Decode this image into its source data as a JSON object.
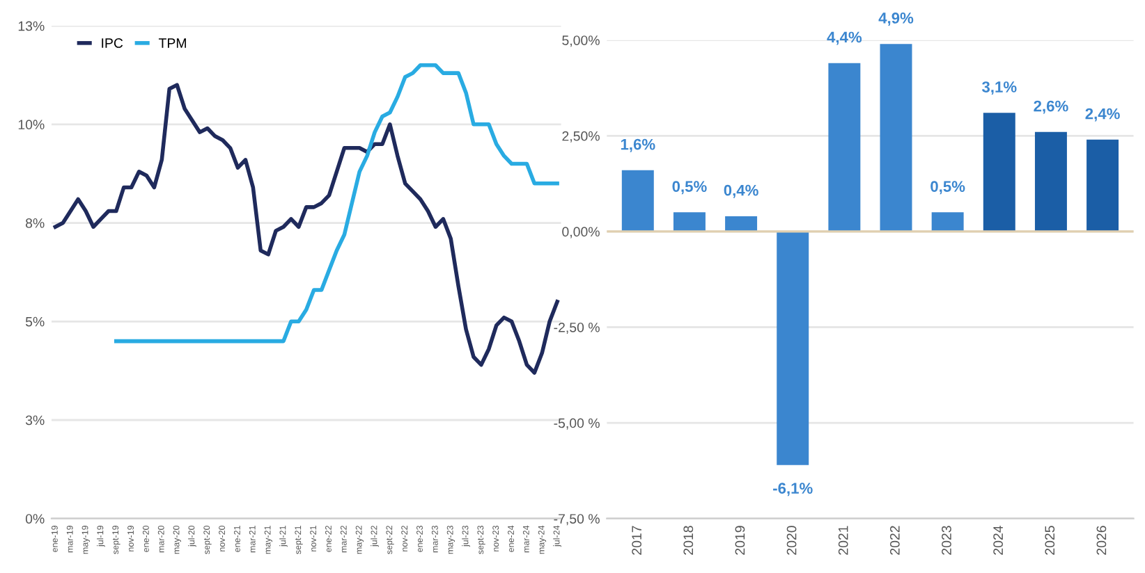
{
  "chart_data": [
    {
      "type": "line",
      "categories": [
        "ene-19",
        null,
        "mar-19",
        null,
        "may-19",
        null,
        "jul-19",
        null,
        "sept-19",
        null,
        "nov-19",
        null,
        "ene-20",
        null,
        "mar-20",
        null,
        "may-20",
        null,
        "jul-20",
        null,
        "sept-20",
        null,
        "nov-20",
        null,
        "ene-21",
        null,
        "mar-21",
        null,
        "may-21",
        null,
        "jul-21",
        null,
        "sept-21",
        null,
        "nov-21",
        null,
        "ene-22",
        null,
        "mar-22",
        null,
        "may-22",
        null,
        "jul-22",
        null,
        "sept-22",
        null,
        "nov-22",
        null,
        "ene-23",
        null,
        "mar-23",
        null,
        "may-23",
        null,
        "jul-23",
        null,
        "sept-23",
        null,
        "nov-23",
        null,
        "ene-24",
        null,
        "mar-24",
        null,
        "may-24",
        null,
        "jul-24"
      ],
      "series": [
        {
          "name": "IPC",
          "color": "#1f2a5c",
          "values": [
            7.4,
            7.5,
            7.8,
            8.1,
            7.8,
            7.4,
            7.6,
            7.8,
            7.8,
            8.4,
            8.4,
            8.8,
            8.7,
            8.4,
            9.1,
            10.9,
            11.0,
            10.4,
            10.1,
            9.8,
            9.9,
            9.7,
            9.6,
            9.4,
            8.9,
            9.1,
            8.4,
            6.8,
            6.7,
            7.3,
            7.4,
            7.6,
            7.4,
            7.9,
            7.9,
            8.0,
            8.2,
            8.8,
            9.4,
            9.4,
            9.4,
            9.3,
            9.5,
            9.5,
            10.0,
            9.2,
            8.5,
            8.3,
            8.1,
            7.8,
            7.4,
            7.6,
            7.1,
            5.9,
            4.8,
            4.1,
            3.9,
            4.3,
            4.9,
            5.1,
            5.0,
            4.5,
            3.9,
            3.7,
            4.2,
            5.0,
            5.5
          ]
        },
        {
          "name": "TPM",
          "color": "#29abe2",
          "values": [
            null,
            null,
            null,
            null,
            null,
            null,
            null,
            null,
            4.5,
            4.5,
            4.5,
            4.5,
            4.5,
            4.5,
            4.5,
            4.5,
            4.5,
            4.5,
            4.5,
            4.5,
            4.5,
            4.5,
            4.5,
            4.5,
            4.5,
            4.5,
            4.5,
            4.5,
            4.5,
            4.5,
            4.5,
            5.0,
            5.0,
            5.3,
            5.8,
            5.8,
            6.3,
            6.8,
            7.2,
            8.0,
            8.8,
            9.2,
            9.8,
            10.2,
            10.3,
            10.7,
            11.2,
            11.3,
            11.5,
            11.5,
            11.5,
            11.3,
            11.3,
            11.3,
            10.8,
            10.0,
            10.0,
            10.0,
            9.5,
            9.2,
            9.0,
            9.0,
            9.0,
            8.5,
            8.5,
            8.5,
            8.5
          ]
        }
      ],
      "ylim": [
        0,
        12.5
      ],
      "yticks": [
        {
          "value": 0,
          "label": "0%"
        },
        {
          "value": 2.5,
          "label": "3%"
        },
        {
          "value": 5,
          "label": "5%"
        },
        {
          "value": 7.5,
          "label": "8%"
        },
        {
          "value": 10,
          "label": "10%"
        },
        {
          "value": 12.5,
          "label": "13%"
        }
      ],
      "grid": "y",
      "legend": "top left",
      "marker": "none",
      "line_style": "solid"
    },
    {
      "type": "bar",
      "categories": [
        "2017",
        "2018",
        "2019",
        "2020",
        "2021",
        "2022",
        "2023",
        "2024",
        "2025",
        "2026"
      ],
      "values": [
        1.6,
        0.5,
        0.4,
        -6.1,
        4.4,
        4.9,
        0.5,
        3.1,
        2.6,
        2.4
      ],
      "colors": [
        "#3b86cf",
        "#3b86cf",
        "#3b86cf",
        "#3b86cf",
        "#3b86cf",
        "#3b86cf",
        "#3b86cf",
        "#1b5ea6",
        "#1b5ea6",
        "#1b5ea6"
      ],
      "value_labels": [
        "1,6%",
        "0,5%",
        "0,4%",
        "-6,1%",
        "4,4%",
        "4,9%",
        "0,5%",
        "3,1%",
        "2,6%",
        "2,4%"
      ],
      "ylim": [
        -7.5,
        5
      ],
      "yticks": [
        {
          "value": -7.5,
          "label": "-7,50 %"
        },
        {
          "value": -5,
          "label": "-5,00 %"
        },
        {
          "value": -2.5,
          "label": "-2,50 %"
        },
        {
          "value": 0,
          "label": "0,00%"
        },
        {
          "value": 2.5,
          "label": "2,50%"
        },
        {
          "value": 5,
          "label": "5,00%"
        }
      ],
      "grid": "y",
      "ref_lines": [
        {
          "axis": "y",
          "value": 0,
          "color": "#e0cfb0"
        }
      ]
    }
  ]
}
